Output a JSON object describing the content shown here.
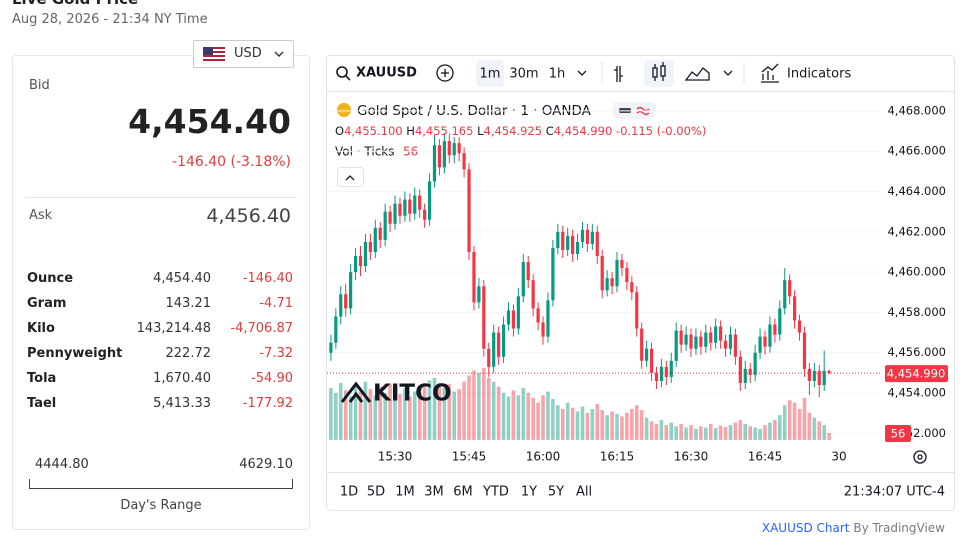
{
  "header": {
    "title": "Live Gold Price",
    "timestamp": "Aug 28, 2026 - 21:34 NY Time"
  },
  "quote": {
    "currency": "USD",
    "bid_label": "Bid",
    "bid": "4,454.40",
    "change": "-146.40 (-3.18%)",
    "ask_label": "Ask",
    "ask": "4,456.40",
    "rows": [
      [
        "Ounce",
        "4,454.40",
        "-146.40"
      ],
      [
        "Gram",
        "143.21",
        "-4.71"
      ],
      [
        "Kilo",
        "143,214.48",
        "-4,706.87"
      ],
      [
        "Pennyweight",
        "222.72",
        "-7.32"
      ],
      [
        "Tola",
        "1,670.40",
        "-54.90"
      ],
      [
        "Tael",
        "5,413.33",
        "-177.92"
      ]
    ],
    "range_low": "4444.80",
    "range_high": "4629.10",
    "range_label": "Day's Range"
  },
  "toolbar": {
    "symbol": "XAUUSD",
    "intervals": [
      "1m",
      "30m",
      "1h"
    ],
    "indicators": "Indicators"
  },
  "legend": {
    "title": "Gold Spot / U.S. Dollar · 1 · OANDA",
    "ohlc": [
      {
        "key": "O",
        "value": "4,455.100"
      },
      {
        "key": "H",
        "value": "4,455.165"
      },
      {
        "key": "L",
        "value": "4,454.925"
      },
      {
        "key": "C",
        "value": "4,454.990"
      }
    ],
    "change": "-0.115 (-0.00%)",
    "volume_label": "Vol · Ticks",
    "volume_value": "56"
  },
  "watermark": "KITCO",
  "chart": {
    "type": "candlestick",
    "up_color": "#089981",
    "down_color": "#f23645",
    "ylim": [
      4451.67,
      4468.79
    ],
    "yticks": [
      {
        "value": 4468,
        "label": "4,468.000"
      },
      {
        "value": 4466,
        "label": "4,466.000"
      },
      {
        "value": 4464,
        "label": "4,464.000"
      },
      {
        "value": 4462,
        "label": "4,462.000"
      },
      {
        "value": 4460,
        "label": "4,460.000"
      },
      {
        "value": 4458,
        "label": "4,458.000"
      },
      {
        "value": 4456,
        "label": "4,456.000"
      },
      {
        "value": 4454,
        "label": "4,454.000"
      },
      {
        "value": 4452,
        "label": "4,452.000"
      }
    ],
    "xticks": [
      "15:30",
      "15:45",
      "16:00",
      "16:15",
      "16:30",
      "16:45",
      "30"
    ],
    "last_price_label": "4,454.990",
    "last_volume_label": "56",
    "ohlc": [
      [
        4456.0,
        4456.9,
        4455.6,
        4456.5
      ],
      [
        4456.5,
        4458.2,
        4456.2,
        4457.8
      ],
      [
        4457.8,
        4459.3,
        4457.4,
        4458.9
      ],
      [
        4458.9,
        4459.4,
        4457.8,
        4458.2
      ],
      [
        4458.2,
        4460.4,
        4457.9,
        4460.0
      ],
      [
        4460.0,
        4461.2,
        4459.6,
        4460.8
      ],
      [
        4460.8,
        4461.3,
        4459.8,
        4460.3
      ],
      [
        4460.3,
        4461.9,
        4460.0,
        4461.5
      ],
      [
        4461.5,
        4461.9,
        4460.6,
        4461.0
      ],
      [
        4461.0,
        4462.6,
        4460.7,
        4462.2
      ],
      [
        4462.2,
        4462.5,
        4461.2,
        4461.6
      ],
      [
        4461.6,
        4463.4,
        4461.3,
        4463.0
      ],
      [
        4463.0,
        4463.3,
        4462.0,
        4462.4
      ],
      [
        4462.4,
        4463.8,
        4462.1,
        4463.4
      ],
      [
        4463.4,
        4463.7,
        4462.4,
        4462.8
      ],
      [
        4462.8,
        4464.0,
        4462.5,
        4463.6
      ],
      [
        4463.6,
        4463.9,
        4462.5,
        4462.9
      ],
      [
        4462.9,
        4464.2,
        4462.6,
        4463.8
      ],
      [
        4463.8,
        4464.1,
        4462.7,
        4463.1
      ],
      [
        4463.1,
        4463.4,
        4462.2,
        4462.6
      ],
      [
        4462.6,
        4464.9,
        4462.3,
        4464.5
      ],
      [
        4464.5,
        4466.8,
        4464.2,
        4466.3
      ],
      [
        4466.3,
        4466.6,
        4464.8,
        4465.2
      ],
      [
        4465.2,
        4466.9,
        4464.9,
        4466.5
      ],
      [
        4466.5,
        4466.8,
        4465.4,
        4465.8
      ],
      [
        4465.8,
        4466.7,
        4465.4,
        4466.4
      ],
      [
        4466.4,
        4466.7,
        4465.5,
        4465.9
      ],
      [
        4465.9,
        4466.2,
        4464.7,
        4465.1
      ],
      [
        4465.1,
        4465.4,
        4460.6,
        4461.0
      ],
      [
        4461.0,
        4461.3,
        4458.1,
        4458.5
      ],
      [
        4458.5,
        4459.7,
        4458.2,
        4459.3
      ],
      [
        4459.3,
        4459.6,
        4455.8,
        4456.2
      ],
      [
        4456.2,
        4456.5,
        4454.8,
        4455.3
      ],
      [
        4455.3,
        4457.4,
        4455.0,
        4457.0
      ],
      [
        4457.0,
        4457.3,
        4455.4,
        4455.8
      ],
      [
        4455.8,
        4457.8,
        4455.5,
        4457.4
      ],
      [
        4457.4,
        4458.5,
        4457.1,
        4458.1
      ],
      [
        4458.1,
        4458.4,
        4456.8,
        4457.2
      ],
      [
        4457.2,
        4459.2,
        4456.9,
        4458.8
      ],
      [
        4458.8,
        4460.9,
        4458.5,
        4460.5
      ],
      [
        4460.5,
        4460.8,
        4459.2,
        4459.6
      ],
      [
        4459.6,
        4459.9,
        4457.8,
        4458.2
      ],
      [
        4458.2,
        4458.5,
        4457.1,
        4457.5
      ],
      [
        4457.5,
        4457.8,
        4456.4,
        4456.8
      ],
      [
        4456.8,
        4459.0,
        4456.5,
        4458.6
      ],
      [
        4458.6,
        4461.6,
        4458.3,
        4461.2
      ],
      [
        4461.2,
        4462.4,
        4460.9,
        4462.0
      ],
      [
        4462.0,
        4462.3,
        4460.7,
        4461.1
      ],
      [
        4461.1,
        4462.2,
        4460.8,
        4461.8
      ],
      [
        4461.8,
        4462.1,
        4460.5,
        4460.9
      ],
      [
        4460.9,
        4461.9,
        4460.6,
        4461.5
      ],
      [
        4461.5,
        4462.5,
        4461.2,
        4462.1
      ],
      [
        4462.1,
        4462.4,
        4461.0,
        4461.4
      ],
      [
        4461.4,
        4462.4,
        4461.1,
        4462.0
      ],
      [
        4462.0,
        4462.3,
        4460.4,
        4460.8
      ],
      [
        4460.8,
        4461.1,
        4458.7,
        4459.1
      ],
      [
        4459.1,
        4460.1,
        4458.8,
        4459.7
      ],
      [
        4459.7,
        4460.0,
        4458.9,
        4459.3
      ],
      [
        4459.3,
        4461.0,
        4459.0,
        4460.6
      ],
      [
        4460.6,
        4460.9,
        4459.8,
        4460.2
      ],
      [
        4460.2,
        4460.5,
        4459.1,
        4459.5
      ],
      [
        4459.5,
        4459.8,
        4458.6,
        4459.0
      ],
      [
        4459.0,
        4459.3,
        4456.8,
        4457.2
      ],
      [
        4457.2,
        4457.5,
        4455.2,
        4455.6
      ],
      [
        4455.6,
        4456.6,
        4455.3,
        4456.2
      ],
      [
        4456.2,
        4456.5,
        4454.6,
        4455.0
      ],
      [
        4455.0,
        4455.3,
        4454.2,
        4454.6
      ],
      [
        4454.6,
        4455.7,
        4454.3,
        4455.3
      ],
      [
        4455.3,
        4455.6,
        4454.4,
        4454.8
      ],
      [
        4454.8,
        4456.0,
        4454.5,
        4455.6
      ],
      [
        4455.6,
        4457.5,
        4455.3,
        4457.1
      ],
      [
        4457.1,
        4457.4,
        4456.0,
        4456.4
      ],
      [
        4456.4,
        4457.3,
        4456.1,
        4456.9
      ],
      [
        4456.9,
        4457.2,
        4455.8,
        4456.2
      ],
      [
        4456.2,
        4457.2,
        4455.9,
        4456.8
      ],
      [
        4456.8,
        4457.1,
        4455.9,
        4456.3
      ],
      [
        4456.3,
        4457.4,
        4456.0,
        4457.0
      ],
      [
        4457.0,
        4457.3,
        4456.1,
        4456.5
      ],
      [
        4456.5,
        4457.7,
        4456.2,
        4457.3
      ],
      [
        4457.3,
        4457.6,
        4456.2,
        4456.6
      ],
      [
        4456.6,
        4456.9,
        4455.8,
        4456.2
      ],
      [
        4456.2,
        4457.3,
        4455.9,
        4456.9
      ],
      [
        4456.9,
        4457.2,
        4455.4,
        4455.8
      ],
      [
        4455.8,
        4456.1,
        4454.1,
        4454.5
      ],
      [
        4454.5,
        4455.6,
        4454.2,
        4455.2
      ],
      [
        4455.2,
        4455.5,
        4454.5,
        4454.9
      ],
      [
        4454.9,
        4456.4,
        4454.6,
        4456.0
      ],
      [
        4456.0,
        4457.2,
        4455.7,
        4456.8
      ],
      [
        4456.8,
        4457.1,
        4455.9,
        4456.3
      ],
      [
        4456.3,
        4457.8,
        4456.0,
        4457.4
      ],
      [
        4457.4,
        4457.7,
        4456.5,
        4456.9
      ],
      [
        4456.9,
        4458.6,
        4456.6,
        4458.2
      ],
      [
        4458.2,
        4460.2,
        4457.9,
        4459.6
      ],
      [
        4459.6,
        4459.9,
        4458.4,
        4458.8
      ],
      [
        4458.8,
        4459.1,
        4457.2,
        4457.6
      ],
      [
        4457.6,
        4457.9,
        4456.6,
        4457.0
      ],
      [
        4457.0,
        4457.3,
        4454.8,
        4455.2
      ],
      [
        4455.2,
        4455.5,
        4453.9,
        4454.6
      ],
      [
        4454.6,
        4455.5,
        4454.3,
        4455.1
      ],
      [
        4455.1,
        4455.4,
        4453.8,
        4454.4
      ],
      [
        4454.4,
        4456.1,
        4454.1,
        4455.1
      ],
      [
        4455.1,
        4455.165,
        4454.925,
        4454.99
      ]
    ],
    "volume": [
      420,
      380,
      460,
      400,
      350,
      440,
      390,
      470,
      410,
      360,
      430,
      380,
      450,
      400,
      370,
      420,
      350,
      390,
      410,
      440,
      480,
      500,
      460,
      420,
      450,
      390,
      410,
      470,
      520,
      560,
      540,
      580,
      500,
      470,
      430,
      380,
      350,
      400,
      360,
      420,
      380,
      340,
      300,
      360,
      390,
      330,
      280,
      250,
      300,
      260,
      230,
      270,
      220,
      250,
      290,
      240,
      200,
      230,
      210,
      190,
      220,
      250,
      280,
      240,
      180,
      150,
      130,
      160,
      120,
      140,
      110,
      130,
      100,
      120,
      90,
      110,
      100,
      130,
      95,
      115,
      105,
      120,
      140,
      160,
      130,
      110,
      100,
      90,
      120,
      140,
      160,
      200,
      280,
      320,
      300,
      250,
      340,
      220,
      180,
      150,
      120,
      56
    ]
  },
  "ranges": [
    "1D",
    "5D",
    "1M",
    "3M",
    "6M",
    "YTD",
    "1Y",
    "5Y",
    "All"
  ],
  "clock": "21:34:07 UTC-4",
  "footer": {
    "link": "XAUUSD Chart",
    "by": "By TradingView"
  }
}
